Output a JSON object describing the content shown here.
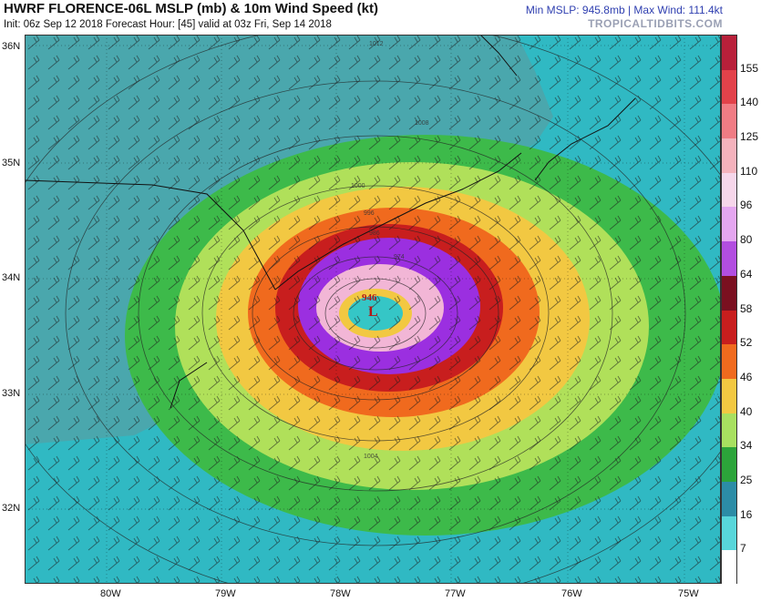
{
  "header": {
    "title": "HWRF FLORENCE-06L MSLP (mb) & 10m Wind Speed (kt)",
    "subtitle": "Init: 06z Sep 12 2018   Forecast Hour: [45]   valid at 03z Fri, Sep 14 2018",
    "min_max": "Min MSLP: 945.8mb | Max Wind: 111.4kt",
    "brand": "TROPICALTIDBITS.COM"
  },
  "storm": {
    "low_symbol": "L",
    "center_pressure_label": "946",
    "isobar_labels": [
      "974",
      "986",
      "996",
      "1000",
      "1004",
      "1008",
      "1012"
    ]
  },
  "axes": {
    "latitudes": [
      "36N",
      "35N",
      "34N",
      "33N",
      "32N"
    ],
    "longitudes": [
      "80W",
      "79W",
      "78W",
      "77W",
      "76W",
      "75W"
    ]
  },
  "colorbar": {
    "labels": [
      "155",
      "140",
      "125",
      "110",
      "96",
      "80",
      "64",
      "58",
      "52",
      "46",
      "40",
      "34",
      "25",
      "16",
      "7"
    ],
    "colors": [
      "#b8203a",
      "#e2424a",
      "#f07c84",
      "#f4b2bc",
      "#f6d6ea",
      "#e4a6f0",
      "#b24ee0",
      "#7a1020",
      "#c81e1e",
      "#f06a1e",
      "#f2c842",
      "#a8e060",
      "#2ca43a",
      "#2c8ca6",
      "#58d6da",
      "#ffffff"
    ]
  },
  "colors": {
    "ocean": "#30b9c3",
    "land": "#4aa7ad",
    "tropical_storm": "#3dba4a",
    "gale": "#b0e05a",
    "storm_force": "#f2c842",
    "strong_storm": "#f06a1e",
    "hurricane": "#c81e1e",
    "major": "#9b2fe0",
    "core": "#f2b6d6",
    "eye": "#35c6c6"
  }
}
